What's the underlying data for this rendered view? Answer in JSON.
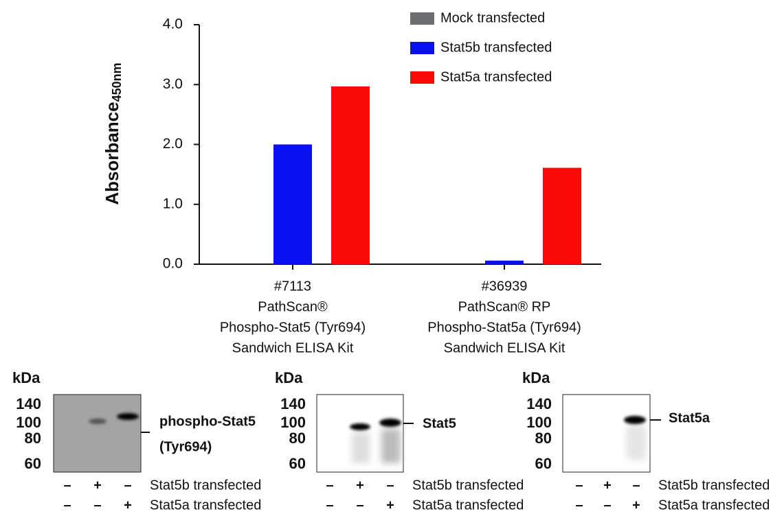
{
  "chart_data": {
    "type": "bar",
    "y_label": "Absorbance",
    "y_label_sub": "450nm",
    "categories": [
      [
        "#7113",
        "PathScan®",
        "Phospho-Stat5 (Tyr694)",
        "Sandwich ELISA Kit"
      ],
      [
        "#36939",
        "PathScan® RP",
        "Phospho-Stat5a (Tyr694)",
        "Sandwich ELISA Kit"
      ]
    ],
    "series": [
      {
        "name": "Mock transfected",
        "color": "#6d6e72",
        "values": [
          0,
          0
        ]
      },
      {
        "name": "Stat5b transfected",
        "color": "#0a10f0",
        "values": [
          2.0,
          0.06
        ]
      },
      {
        "name": "Stat5a transfected",
        "color": "#fb0a0a",
        "values": [
          2.97,
          1.61
        ]
      }
    ],
    "ylim": [
      0,
      4
    ],
    "yticks": [
      {
        "value": 0,
        "label": "0.0"
      },
      {
        "value": 1,
        "label": "1.0"
      },
      {
        "value": 2,
        "label": "2.0"
      },
      {
        "value": 3,
        "label": "3.0"
      },
      {
        "value": 4,
        "label": "4.0"
      }
    ],
    "legend": "top-right"
  },
  "blots": [
    {
      "unit": "kDa",
      "markers": [
        140,
        100,
        80,
        60
      ],
      "label": [
        "phospho-Stat5",
        "(Tyr694)"
      ],
      "rows": [
        {
          "name": "Stat5b transfected",
          "lanes": [
            "–",
            "+",
            "–"
          ]
        },
        {
          "name": "Stat5a transfected",
          "lanes": [
            "–",
            "–",
            "+"
          ]
        }
      ]
    },
    {
      "unit": "kDa",
      "markers": [
        140,
        100,
        80,
        60
      ],
      "label": [
        "Stat5"
      ],
      "rows": [
        {
          "name": "Stat5b transfected",
          "lanes": [
            "–",
            "+",
            "–"
          ]
        },
        {
          "name": "Stat5a transfected",
          "lanes": [
            "–",
            "–",
            "+"
          ]
        }
      ]
    },
    {
      "unit": "kDa",
      "markers": [
        140,
        100,
        80,
        60
      ],
      "label": [
        "Stat5a"
      ],
      "rows": [
        {
          "name": "Stat5b transfected",
          "lanes": [
            "–",
            "+",
            "–"
          ]
        },
        {
          "name": "Stat5a transfected",
          "lanes": [
            "–",
            "–",
            "+"
          ]
        }
      ]
    }
  ]
}
